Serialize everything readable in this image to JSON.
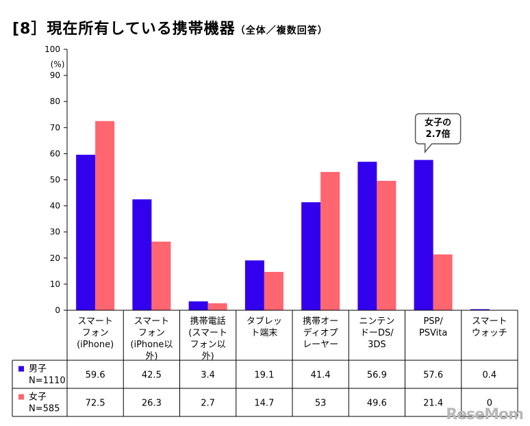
{
  "title": "[8］現在所有している携帯機器",
  "subtitle": "（全体／複数回答）",
  "watermark": "ReseMom",
  "chart_data": {
    "type": "bar",
    "ylabel": "(%)",
    "ylim": [
      0,
      100
    ],
    "yticks": [
      0,
      10,
      20,
      30,
      40,
      50,
      60,
      70,
      80,
      90,
      100
    ],
    "grid": false,
    "categories": [
      [
        "スマート",
        "フォン",
        "(iPhone)"
      ],
      [
        "スマート",
        "フォン",
        "(iPhone以",
        "外)"
      ],
      [
        "携帯電話",
        "(スマート",
        "フォン以",
        "外)"
      ],
      [
        "タブレッ",
        "ト端末"
      ],
      [
        "携帯オー",
        "ディオプ",
        "レーヤー"
      ],
      [
        "ニンテン",
        "ドーDS/",
        "3DS"
      ],
      [
        "PSP/",
        "PSVita"
      ],
      [
        "スマート",
        "ウォッチ"
      ]
    ],
    "series": [
      {
        "name": [
          "男子",
          "N=1110"
        ],
        "color": "#3300ee",
        "values": [
          59.6,
          42.5,
          3.4,
          19.1,
          41.4,
          56.9,
          57.6,
          0.4
        ],
        "labels": [
          "59.6",
          "42.5",
          "3.4",
          "19.1",
          "41.4",
          "56.9",
          "57.6",
          "0.4"
        ]
      },
      {
        "name": [
          "女子",
          "N=585"
        ],
        "color": "#ff6670",
        "values": [
          72.5,
          26.3,
          2.7,
          14.7,
          53,
          49.6,
          21.4,
          0
        ],
        "labels": [
          "72.5",
          "26.3",
          "2.7",
          "14.7",
          "53",
          "49.6",
          "21.4",
          "0"
        ]
      }
    ],
    "annotation": {
      "lines": [
        "女子の",
        "2.7倍"
      ]
    }
  }
}
